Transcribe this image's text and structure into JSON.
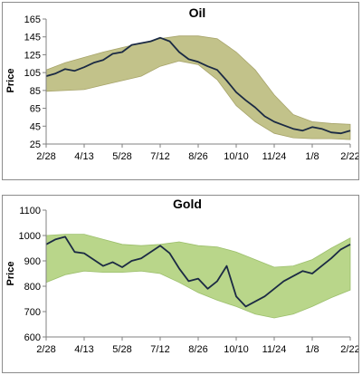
{
  "chart_data": [
    {
      "type": "line",
      "title": "Oil",
      "xlabel": "",
      "ylabel": "Price",
      "ylim": [
        25,
        165
      ],
      "yticks": [
        25,
        45,
        65,
        85,
        105,
        125,
        145,
        165
      ],
      "x_tick_labels": [
        "2/28",
        "4/13",
        "5/28",
        "7/12",
        "8/26",
        "10/10",
        "11/24",
        "1/8",
        "2/22"
      ],
      "grid": false,
      "colors": {
        "line": "#1b2a44",
        "band": "#c2c28a",
        "band_edge": "#a7a46a"
      },
      "band": {
        "name": "",
        "x": [
          0,
          0.5,
          1,
          1.5,
          2,
          2.5,
          3,
          3.5,
          4,
          4.5,
          5,
          5.5,
          6,
          6.5,
          7,
          7.5,
          8
        ],
        "upper": [
          108,
          116,
          122,
          128,
          133,
          138,
          143,
          146,
          146,
          143,
          128,
          108,
          80,
          58,
          50,
          48,
          47
        ],
        "lower": [
          84,
          85,
          86,
          91,
          96,
          101,
          112,
          118,
          114,
          97,
          68,
          50,
          37,
          32,
          31,
          31,
          30
        ]
      },
      "series": [
        {
          "name": "",
          "x": [
            0,
            0.25,
            0.5,
            0.75,
            1,
            1.25,
            1.5,
            1.75,
            2,
            2.25,
            2.5,
            2.75,
            3,
            3.25,
            3.5,
            3.75,
            4,
            4.25,
            4.5,
            4.75,
            5,
            5.25,
            5.5,
            5.75,
            6,
            6.25,
            6.5,
            6.75,
            7,
            7.25,
            7.5,
            7.75,
            8
          ],
          "y": [
            101,
            104,
            109,
            107,
            111,
            116,
            119,
            126,
            128,
            136,
            138,
            140,
            144,
            140,
            128,
            120,
            117,
            112,
            108,
            96,
            83,
            74,
            66,
            56,
            50,
            46,
            42,
            40,
            44,
            42,
            38,
            37,
            40
          ]
        }
      ]
    },
    {
      "type": "line",
      "title": "Gold",
      "xlabel": "",
      "ylabel": "Price",
      "ylim": [
        600,
        1100
      ],
      "yticks": [
        600,
        700,
        800,
        900,
        1000,
        1100
      ],
      "x_tick_labels": [
        "2/28",
        "4/13",
        "5/28",
        "7/12",
        "8/26",
        "10/10",
        "11/24",
        "1/8",
        "2/22"
      ],
      "grid": false,
      "colors": {
        "line": "#1b2a44",
        "band": "#b9d68a",
        "band_edge": "#9cbf6c"
      },
      "band": {
        "name": "",
        "x": [
          0,
          0.5,
          1,
          1.5,
          2,
          2.5,
          3,
          3.5,
          4,
          4.5,
          5,
          5.5,
          6,
          6.5,
          7,
          7.5,
          8
        ],
        "upper": [
          1000,
          1005,
          1005,
          985,
          965,
          960,
          965,
          975,
          960,
          955,
          935,
          905,
          875,
          880,
          905,
          950,
          990
        ],
        "lower": [
          815,
          845,
          860,
          855,
          855,
          860,
          850,
          815,
          775,
          745,
          720,
          690,
          675,
          690,
          720,
          755,
          785
        ]
      },
      "series": [
        {
          "name": "",
          "x": [
            0,
            0.25,
            0.5,
            0.75,
            1,
            1.25,
            1.5,
            1.75,
            2,
            2.25,
            2.5,
            2.75,
            3,
            3.25,
            3.5,
            3.75,
            4,
            4.25,
            4.5,
            4.75,
            5,
            5.25,
            5.5,
            5.75,
            6,
            6.25,
            6.5,
            6.75,
            7,
            7.25,
            7.5,
            7.75,
            8
          ],
          "y": [
            965,
            985,
            995,
            935,
            930,
            905,
            880,
            895,
            875,
            900,
            910,
            935,
            960,
            930,
            870,
            820,
            830,
            790,
            820,
            880,
            760,
            720,
            740,
            760,
            790,
            820,
            840,
            860,
            850,
            880,
            910,
            945,
            965
          ]
        }
      ]
    }
  ]
}
